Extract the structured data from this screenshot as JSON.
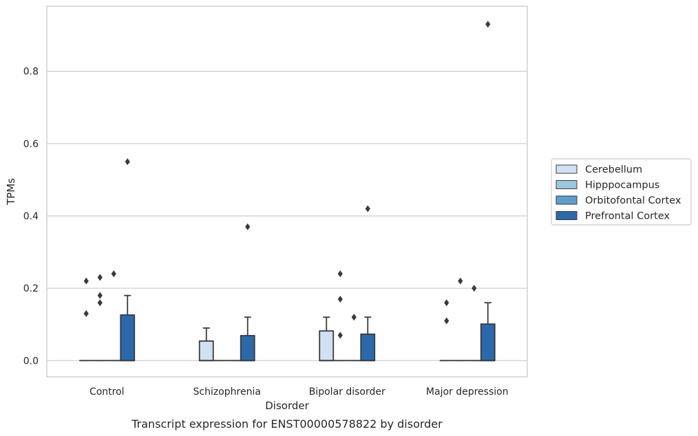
{
  "chart_data": {
    "type": "box",
    "caption": "Transcript expression for ENST00000578822 by disorder",
    "xlabel": "Disorder",
    "ylabel": "TPMs",
    "ylim": [
      -0.045,
      0.98
    ],
    "yticks": [
      "0.0",
      "0.2",
      "0.4",
      "0.6",
      "0.8"
    ],
    "ytick_values": [
      0.0,
      0.2,
      0.4,
      0.6,
      0.8
    ],
    "grid": "horizontal",
    "legend_position": "right",
    "categories": [
      "Control",
      "Schizophrenia",
      "Bipolar disorder",
      "Major depression"
    ],
    "series": [
      {
        "name": "Cerebellum",
        "color": "#d0e1f2",
        "boxes": [
          {
            "q1": 0,
            "median": 0,
            "q3": 0,
            "whisker_low": 0,
            "whisker_high": 0,
            "outliers": [
              0.13,
              0.22
            ]
          },
          {
            "q1": 0,
            "median": 0,
            "q3": 0.054,
            "whisker_low": 0,
            "whisker_high": 0.09,
            "outliers": []
          },
          {
            "q1": 0,
            "median": 0,
            "q3": 0.082,
            "whisker_low": 0,
            "whisker_high": 0.12,
            "outliers": []
          },
          {
            "q1": 0,
            "median": 0,
            "q3": 0,
            "whisker_low": 0,
            "whisker_high": 0,
            "outliers": [
              0.11,
              0.16
            ]
          }
        ]
      },
      {
        "name": "Hipppocampus",
        "color": "#9ac8e0",
        "boxes": [
          {
            "q1": 0,
            "median": 0,
            "q3": 0,
            "whisker_low": 0,
            "whisker_high": 0,
            "outliers": [
              0.16,
              0.18,
              0.23
            ]
          },
          {
            "q1": 0,
            "median": 0,
            "q3": 0,
            "whisker_low": 0,
            "whisker_high": 0,
            "outliers": []
          },
          {
            "q1": 0,
            "median": 0,
            "q3": 0,
            "whisker_low": 0,
            "whisker_high": 0,
            "outliers": [
              0.07,
              0.17,
              0.24
            ]
          },
          {
            "q1": 0,
            "median": 0,
            "q3": 0,
            "whisker_low": 0,
            "whisker_high": 0,
            "outliers": [
              0.22
            ]
          }
        ]
      },
      {
        "name": "Orbitofontal Cortex",
        "color": "#5a9fcd",
        "boxes": [
          {
            "q1": 0,
            "median": 0,
            "q3": 0,
            "whisker_low": 0,
            "whisker_high": 0,
            "outliers": [
              0.24
            ]
          },
          {
            "q1": 0,
            "median": 0,
            "q3": 0,
            "whisker_low": 0,
            "whisker_high": 0,
            "outliers": []
          },
          {
            "q1": 0,
            "median": 0,
            "q3": 0,
            "whisker_low": 0,
            "whisker_high": 0,
            "outliers": [
              0.12
            ]
          },
          {
            "q1": 0,
            "median": 0,
            "q3": 0,
            "whisker_low": 0,
            "whisker_high": 0,
            "outliers": [
              0.2
            ]
          }
        ]
      },
      {
        "name": "Prefrontal Cortex",
        "color": "#2a6aac",
        "boxes": [
          {
            "q1": 0,
            "median": 0,
            "q3": 0.126,
            "whisker_low": 0,
            "whisker_high": 0.18,
            "outliers": [
              0.55
            ]
          },
          {
            "q1": 0,
            "median": 0,
            "q3": 0.069,
            "whisker_low": 0,
            "whisker_high": 0.12,
            "outliers": [
              0.37
            ]
          },
          {
            "q1": 0,
            "median": 0,
            "q3": 0.073,
            "whisker_low": 0,
            "whisker_high": 0.12,
            "outliers": [
              0.42
            ]
          },
          {
            "q1": 0,
            "median": 0,
            "q3": 0.101,
            "whisker_low": 0,
            "whisker_high": 0.16,
            "outliers": [
              0.93
            ]
          }
        ]
      }
    ],
    "colors": {
      "grid": "#cccccc",
      "frame": "#cccccc",
      "edge": "#3a3a3a",
      "text": "#262626"
    }
  }
}
